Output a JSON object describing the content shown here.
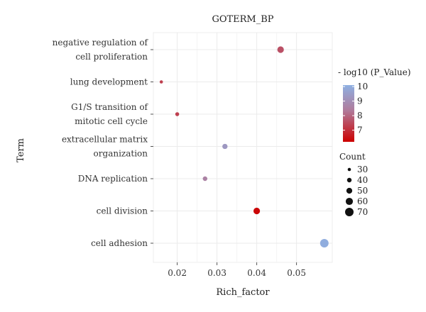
{
  "chart_data": {
    "type": "scatter",
    "title": "GOTERM_BP",
    "xlabel": "Rich_factor",
    "ylabel": "Term",
    "xlim": [
      0.014,
      0.059
    ],
    "xticks": [
      0.02,
      0.03,
      0.04,
      0.05
    ],
    "xtick_labels": [
      "0.02",
      "0.03",
      "0.04",
      "0.05"
    ],
    "grid": true,
    "terms": [
      {
        "label_lines": [
          "negative regulation of",
          "cell proliferation"
        ],
        "rich_factor": 0.046,
        "count": 55,
        "neg_log10_p": 7.6
      },
      {
        "label_lines": [
          "lung development"
        ],
        "rich_factor": 0.016,
        "count": 30,
        "neg_log10_p": 7.3
      },
      {
        "label_lines": [
          "G1/S transition of",
          "mitotic cell cycle"
        ],
        "rich_factor": 0.02,
        "count": 35,
        "neg_log10_p": 7.3
      },
      {
        "label_lines": [
          "extracellular matrix",
          "organization"
        ],
        "rich_factor": 0.032,
        "count": 45,
        "neg_log10_p": 9.3
      },
      {
        "label_lines": [
          "DNA replication"
        ],
        "rich_factor": 0.027,
        "count": 40,
        "neg_log10_p": 8.6
      },
      {
        "label_lines": [
          "cell division"
        ],
        "rich_factor": 0.04,
        "count": 55,
        "neg_log10_p": 6.3
      },
      {
        "label_lines": [
          "cell adhesion"
        ],
        "rich_factor": 0.057,
        "count": 70,
        "neg_log10_p": 10.0
      }
    ],
    "color_legend": {
      "title": "- log10 (P_Value)",
      "range": [
        6.2,
        10.1
      ],
      "ticks": [
        10,
        9,
        8,
        7
      ],
      "tick_labels": [
        "10",
        "9",
        "8",
        "7"
      ],
      "low_color": "#cc0000",
      "mid_color": "#b07a9a",
      "high_color": "#8eb0e2"
    },
    "size_legend": {
      "title": "Count",
      "values": [
        30,
        40,
        50,
        60,
        70
      ],
      "labels": [
        "30",
        "40",
        "50",
        "60",
        "70"
      ]
    }
  }
}
